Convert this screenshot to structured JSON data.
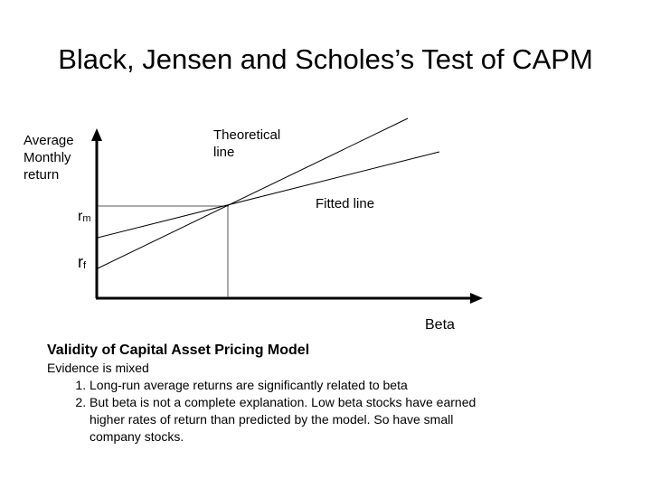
{
  "title": "Black, Jensen and Scholes’s Test of CAPM",
  "diagram": {
    "y_axis_label": [
      "Average",
      "Monthly",
      "return"
    ],
    "x_axis_label": "Beta",
    "rm_label": {
      "base": "r",
      "sub": "m"
    },
    "rf_label": {
      "base": "r",
      "sub": "f"
    },
    "theoretical_line_label": [
      "Theoretical",
      "line"
    ],
    "fitted_line_label": "Fitted line",
    "line_color": "#000000",
    "guide_color": "#555555"
  },
  "text": {
    "heading": "Validity of Capital Asset Pricing Model",
    "intro": "Evidence is mixed",
    "points": [
      "Long-run average returns are significantly related to beta",
      "But beta is not a complete explanation. Low beta stocks have earned higher rates of return than predicted by the model. So have small company stocks."
    ]
  }
}
